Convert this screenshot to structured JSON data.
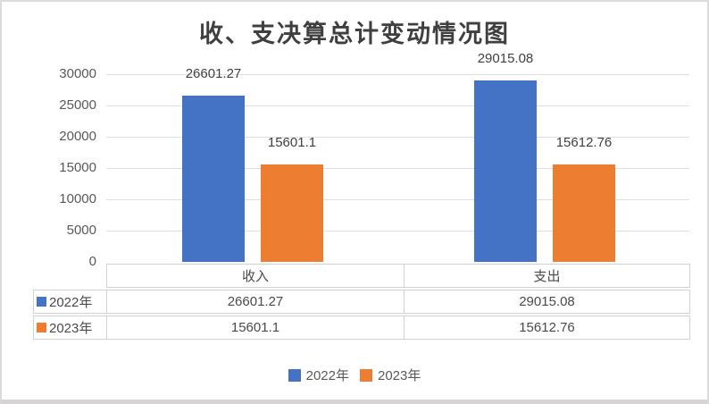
{
  "chart_data": {
    "type": "bar",
    "title": "收、支决算总计变动情况图",
    "categories": [
      "收入",
      "支出"
    ],
    "series": [
      {
        "name": "2022年",
        "color": "#4472C4",
        "values": [
          26601.27,
          29015.08
        ],
        "value_labels": [
          "26601.27",
          "29015.08"
        ]
      },
      {
        "name": "2023年",
        "color": "#ED7D31",
        "values": [
          15601.1,
          15612.76
        ],
        "value_labels": [
          "15601.1",
          "15612.76"
        ]
      }
    ],
    "xlabel": "",
    "ylabel": "",
    "ylim": [
      0,
      30000
    ],
    "ytick_step": 5000,
    "yticks": [
      0,
      5000,
      10000,
      15000,
      20000,
      25000,
      30000
    ],
    "grid": true,
    "legend_position": "bottom",
    "legend_labels": [
      "2022年",
      "2023年"
    ],
    "data_table_shown": true
  },
  "colors": {
    "series_2022": "#4472C4",
    "series_2023": "#ED7D31",
    "gridline": "#dedede",
    "table_border": "#d1d1d1",
    "axis_text": "#595959",
    "label_text": "#404040",
    "table_text": "#4a4a4a",
    "title_text": "#3f3f3f",
    "legend_text": "#595959",
    "background": "#ffffff",
    "frame_border": "#dbdbdb"
  }
}
